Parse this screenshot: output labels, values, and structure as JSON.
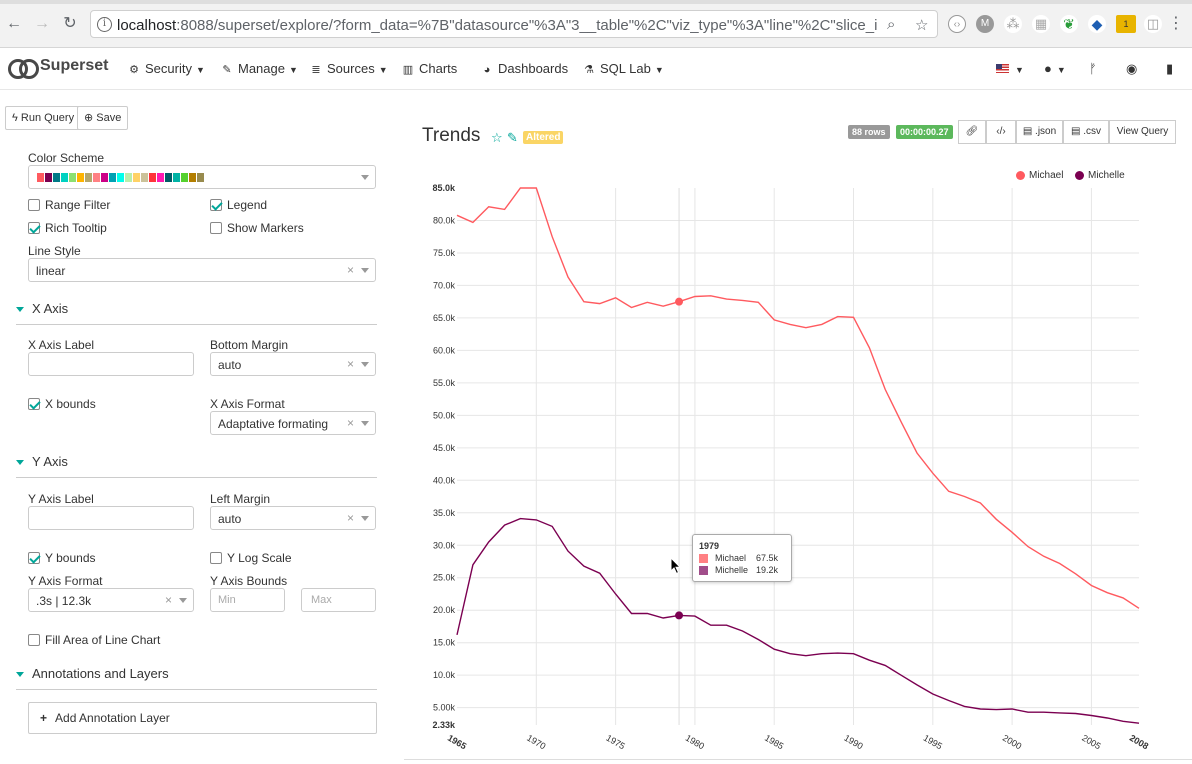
{
  "browser": {
    "url_host": "localhost",
    "url_rest": ":8088/superset/explore/?form_data=%7B\"datasource\"%3A\"3__table\"%2C\"viz_type\"%3A\"line\"%2C\"slice_id\"..."
  },
  "navbar": {
    "brand": "Superset",
    "items": [
      {
        "label": "Security",
        "icon": "cogs-icon"
      },
      {
        "label": "Manage",
        "icon": "wrench-icon"
      },
      {
        "label": "Sources",
        "icon": "database-icon"
      },
      {
        "label": "Charts",
        "icon": "bar-chart-icon"
      },
      {
        "label": "Dashboards",
        "icon": "dashboard-icon"
      },
      {
        "label": "SQL Lab",
        "icon": "flask-icon"
      }
    ]
  },
  "toolbar": {
    "run_query": "Run Query",
    "save": "Save"
  },
  "controls": {
    "color_scheme_label": "Color Scheme",
    "color_scheme": [
      "#ff5a5f",
      "#7b0051",
      "#007a87",
      "#00d1c1",
      "#8ce071",
      "#ffb400",
      "#b4a76c",
      "#ff8083",
      "#cc0086",
      "#00a1b3",
      "#00ffeb",
      "#bbedab",
      "#ffd266",
      "#cbc29a",
      "#ff3339",
      "#ff1ab1",
      "#005c66",
      "#00b3a5",
      "#55d12e",
      "#b37e00",
      "#988b4e"
    ],
    "range_filter": "Range Filter",
    "legend": "Legend",
    "rich_tooltip": "Rich Tooltip",
    "show_markers": "Show Markers",
    "line_style_label": "Line Style",
    "line_style": "linear",
    "x_axis": {
      "title": "X Axis",
      "label_label": "X Axis Label",
      "bottom_margin_label": "Bottom Margin",
      "bottom_margin": "auto",
      "bounds": "X bounds",
      "format_label": "X Axis Format",
      "format": "Adaptative formating"
    },
    "y_axis": {
      "title": "Y Axis",
      "label_label": "Y Axis Label",
      "left_margin_label": "Left Margin",
      "left_margin": "auto",
      "bounds": "Y bounds",
      "log_scale": "Y Log Scale",
      "format_label": "Y Axis Format",
      "format": ".3s | 12.3k",
      "bounds_label": "Y Axis Bounds",
      "min_placeholder": "Min",
      "max_placeholder": "Max"
    },
    "fill_area": "Fill Area of Line Chart",
    "annotations": {
      "title": "Annotations and Layers",
      "add": "Add Annotation Layer"
    }
  },
  "chart_header": {
    "title": "Trends",
    "altered": "Altered",
    "rows": "88 rows",
    "time": "00:00:00.27",
    "json": ".json",
    "csv": ".csv",
    "view_query": "View Query"
  },
  "tooltip": {
    "year": "1979",
    "rows": [
      {
        "name": "Michael",
        "value": "67.5k",
        "color": "#ff8083"
      },
      {
        "name": "Michelle",
        "value": "19.2k",
        "color": "#a14d8a"
      }
    ]
  },
  "chart_data": {
    "type": "line",
    "x": [
      1965,
      1966,
      1967,
      1968,
      1969,
      1970,
      1971,
      1972,
      1973,
      1974,
      1975,
      1976,
      1977,
      1978,
      1979,
      1980,
      1981,
      1982,
      1983,
      1984,
      1985,
      1986,
      1987,
      1988,
      1989,
      1990,
      1991,
      1992,
      1993,
      1994,
      1995,
      1996,
      1997,
      1998,
      1999,
      2000,
      2001,
      2002,
      2003,
      2004,
      2005,
      2006,
      2007,
      2008
    ],
    "series": [
      {
        "name": "Michael",
        "color": "#ff5a5f",
        "values": [
          80800,
          79700,
          82100,
          81700,
          85000,
          85000,
          77500,
          71300,
          67500,
          67200,
          68100,
          66600,
          67400,
          66800,
          67500,
          68300,
          68400,
          67900,
          67700,
          67400,
          64700,
          64000,
          63500,
          64000,
          65200,
          65100,
          60400,
          54000,
          49000,
          44200,
          41100,
          38300,
          37500,
          36500,
          34000,
          32000,
          29800,
          28300,
          27200,
          25600,
          23800,
          22700,
          21900,
          20300
        ]
      },
      {
        "name": "Michelle",
        "color": "#7b0051",
        "values": [
          16200,
          27000,
          30500,
          33100,
          34100,
          33900,
          32900,
          29100,
          26800,
          25700,
          22500,
          19500,
          19500,
          18800,
          19200,
          19100,
          17700,
          17700,
          16800,
          15500,
          14000,
          13300,
          13000,
          13300,
          13400,
          13300,
          12300,
          11500,
          10000,
          8500,
          7100,
          6100,
          5200,
          4800,
          4700,
          4800,
          4300,
          4300,
          4200,
          4100,
          3800,
          3400,
          2900,
          2600
        ]
      }
    ],
    "x_ticks": [
      "1965",
      "1970",
      "1975",
      "1980",
      "1985",
      "1990",
      "1995",
      "2000",
      "2005",
      "2008"
    ],
    "y_ticks": [
      "2.33k",
      "5.00k",
      "10.0k",
      "15.0k",
      "20.0k",
      "25.0k",
      "30.0k",
      "35.0k",
      "40.0k",
      "45.0k",
      "50.0k",
      "55.0k",
      "60.0k",
      "65.0k",
      "70.0k",
      "75.0k",
      "80.0k",
      "85.0k"
    ],
    "y_tick_values": [
      2330,
      5000,
      10000,
      15000,
      20000,
      25000,
      30000,
      35000,
      40000,
      45000,
      50000,
      55000,
      60000,
      65000,
      70000,
      75000,
      80000,
      85000
    ],
    "ylim": [
      2330,
      85000
    ],
    "xlim": [
      1965,
      2008
    ],
    "highlight_x": 1979,
    "legend_position": "top-right",
    "grid": true
  }
}
